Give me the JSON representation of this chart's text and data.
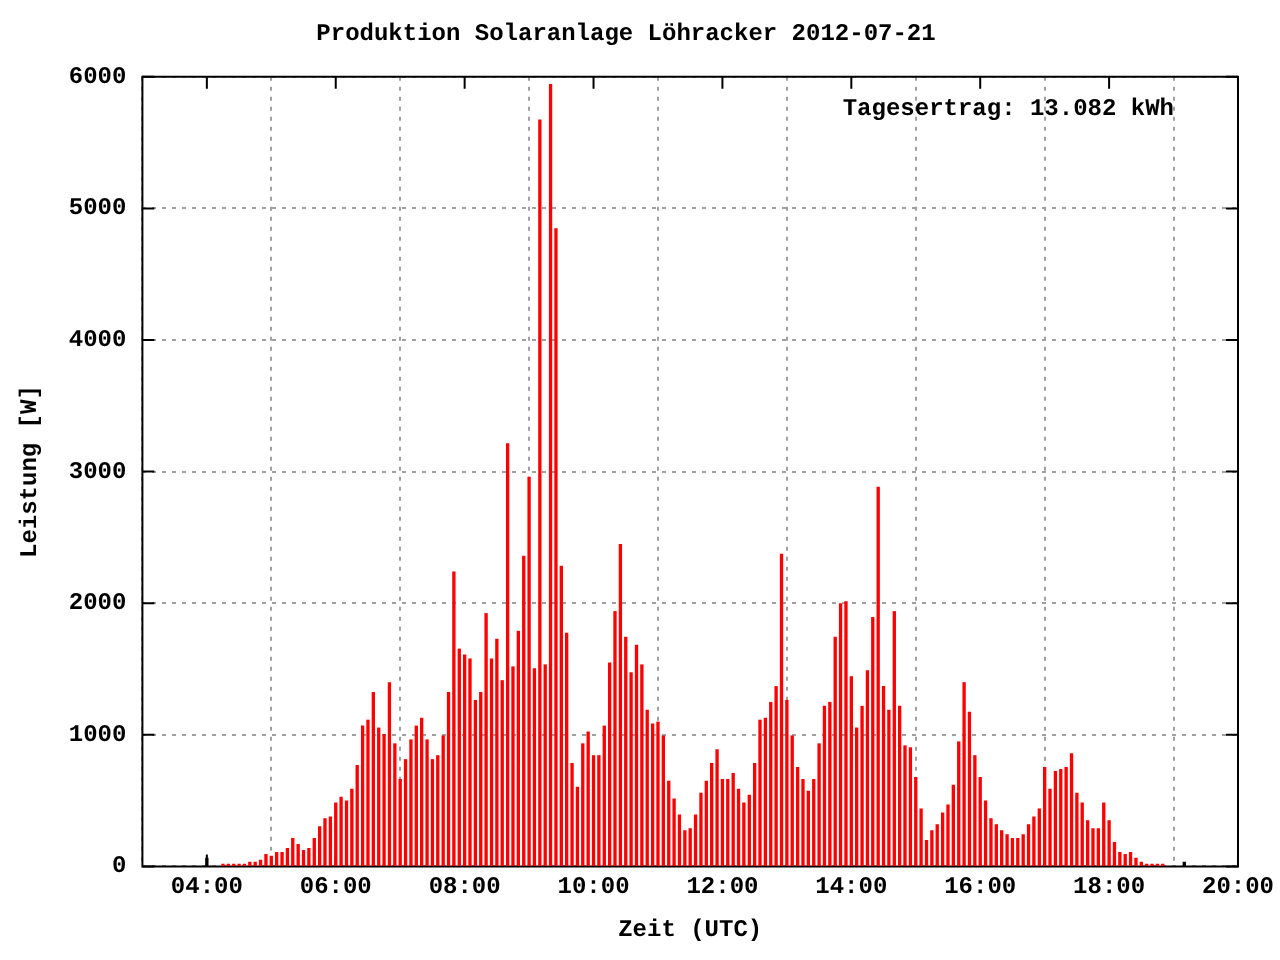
{
  "chart_data": {
    "type": "bar",
    "title": "Produktion Solaranlage Löhracker 2012-07-21",
    "xlabel": "Zeit (UTC)",
    "ylabel": "Leistung [W]",
    "annotations": [
      "Tagesertrag: 13.082 kWh"
    ],
    "x": [
      4.25,
      4.333,
      4.417,
      4.5,
      4.583,
      4.667,
      4.75,
      4.833,
      4.917,
      5,
      5.083,
      5.167,
      5.25,
      5.333,
      5.417,
      5.5,
      5.583,
      5.667,
      5.75,
      5.833,
      5.917,
      6,
      6.083,
      6.167,
      6.25,
      6.333,
      6.417,
      6.5,
      6.583,
      6.667,
      6.75,
      6.833,
      6.917,
      7,
      7.083,
      7.167,
      7.25,
      7.333,
      7.417,
      7.5,
      7.583,
      7.667,
      7.75,
      7.833,
      7.917,
      8,
      8.083,
      8.167,
      8.25,
      8.333,
      8.417,
      8.5,
      8.583,
      8.667,
      8.75,
      8.833,
      8.917,
      9,
      9.083,
      9.167,
      9.25,
      9.333,
      9.417,
      9.5,
      9.583,
      9.667,
      9.75,
      9.833,
      9.917,
      10,
      10.083,
      10.167,
      10.25,
      10.333,
      10.417,
      10.5,
      10.583,
      10.667,
      10.75,
      10.833,
      10.917,
      11,
      11.083,
      11.167,
      11.25,
      11.333,
      11.417,
      11.5,
      11.583,
      11.667,
      11.75,
      11.833,
      11.917,
      12,
      12.083,
      12.167,
      12.25,
      12.333,
      12.417,
      12.5,
      12.583,
      12.667,
      12.75,
      12.833,
      12.917,
      13,
      13.083,
      13.167,
      13.25,
      13.333,
      13.417,
      13.5,
      13.583,
      13.667,
      13.75,
      13.833,
      13.917,
      14,
      14.083,
      14.167,
      14.25,
      14.333,
      14.417,
      14.5,
      14.583,
      14.667,
      14.75,
      14.833,
      14.917,
      15,
      15.083,
      15.167,
      15.25,
      15.333,
      15.417,
      15.5,
      15.583,
      15.667,
      15.75,
      15.833,
      15.917,
      16,
      16.083,
      16.167,
      16.25,
      16.333,
      16.417,
      16.5,
      16.583,
      16.667,
      16.75,
      16.833,
      16.917,
      17,
      17.083,
      17.167,
      17.25,
      17.333,
      17.417,
      17.5,
      17.583,
      17.667,
      17.75,
      17.833,
      17.917,
      18,
      18.083,
      18.167,
      18.25,
      18.333,
      18.417,
      18.5,
      18.583,
      18.667,
      18.75,
      18.833
    ],
    "series": [
      {
        "color": "#ff0000",
        "values": [
          15,
          15,
          15,
          15,
          15,
          30,
          30,
          45,
          90,
          75,
          105,
          105,
          135,
          210,
          165,
          120,
          135,
          210,
          300,
          360,
          375,
          480,
          525,
          495,
          585,
          765,
          1065,
          1110,
          1320,
          1050,
          1000,
          1395,
          930,
          660,
          810,
          960,
          1065,
          1125,
          960,
          810,
          840,
          990,
          1320,
          2235,
          1650,
          1605,
          1575,
          1260,
          1320,
          1920,
          1575,
          1725,
          1410,
          3210,
          1515,
          1785,
          2355,
          2955,
          1500,
          5670,
          1530,
          5940,
          4845,
          2280,
          1770,
          780,
          600,
          930,
          1020,
          840,
          840,
          1065,
          1545,
          1935,
          2445,
          1740,
          1470,
          1680,
          1530,
          1185,
          1080,
          1095,
          990,
          645,
          510,
          390,
          270,
          285,
          390,
          555,
          645,
          780,
          885,
          660,
          660,
          705,
          585,
          480,
          540,
          780,
          1110,
          1125,
          1245,
          1365,
          2370,
          1260,
          990,
          750,
          660,
          570,
          660,
          930,
          1215,
          1245,
          1740,
          1995,
          2010,
          1440,
          1050,
          1215,
          1485,
          1890,
          2880,
          1365,
          1185,
          1935,
          1215,
          915,
          900,
          675,
          435,
          195,
          270,
          315,
          405,
          465,
          615,
          945,
          1395,
          1170,
          840,
          675,
          495,
          360,
          315,
          270,
          240,
          210,
          210,
          240,
          315,
          375,
          435,
          750,
          585,
          720,
          735,
          750,
          855,
          555,
          480,
          345,
          285,
          285,
          480,
          345,
          180,
          105,
          90,
          105,
          60,
          30,
          15,
          15,
          15,
          15
        ]
      },
      {
        "color": "#000000",
        "x": [
          4,
          19.167
        ],
        "values": [
          60,
          30
        ]
      }
    ],
    "xlim": [
      3,
      20
    ],
    "xticks": [
      {
        "value": 4,
        "label": "04:00"
      },
      {
        "value": 6,
        "label": "06:00"
      },
      {
        "value": 8,
        "label": "08:00"
      },
      {
        "value": 10,
        "label": "10:00"
      },
      {
        "value": 12,
        "label": "12:00"
      },
      {
        "value": 14,
        "label": "14:00"
      },
      {
        "value": 16,
        "label": "16:00"
      },
      {
        "value": 18,
        "label": "18:00"
      },
      {
        "value": 20,
        "label": "20:00"
      }
    ],
    "ylim": [
      0,
      6000
    ],
    "yticks": [
      0,
      1000,
      2000,
      3000,
      4000,
      5000,
      6000
    ],
    "grid": true,
    "legend": false
  }
}
